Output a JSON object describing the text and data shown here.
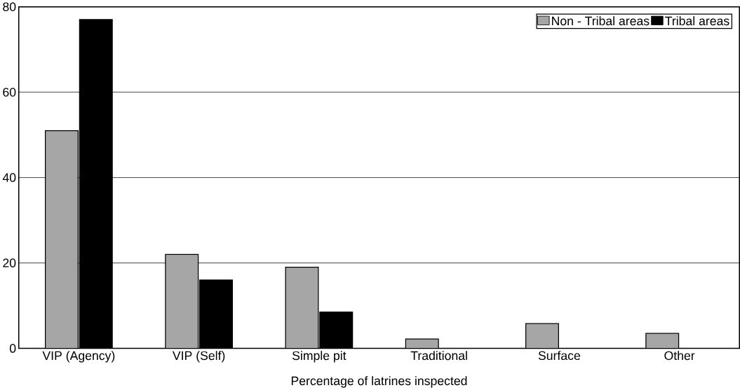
{
  "chart_data": {
    "type": "bar",
    "xlabel": "Percentage of latrines inspected",
    "categories": [
      "VIP (Agency)",
      "VIP (Self)",
      "Simple pit",
      "Traditional",
      "Surface",
      "Other"
    ],
    "series": [
      {
        "name": "Non - Tribal areas",
        "color": "#a6a6a6",
        "values": [
          51,
          22,
          19,
          2.2,
          5.8,
          3.5
        ]
      },
      {
        "name": "Tribal areas",
        "color": "#000000",
        "values": [
          77,
          16,
          8.5,
          0,
          0,
          0
        ]
      }
    ],
    "ylim": [
      0,
      80
    ],
    "yticks": [
      0,
      20,
      40,
      60,
      80
    ],
    "grid": "y",
    "legend": "top right"
  }
}
